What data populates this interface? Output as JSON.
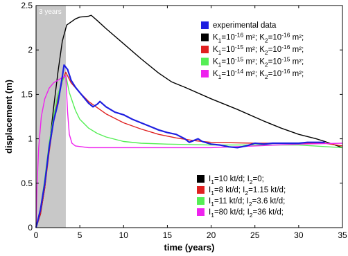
{
  "chart_data": {
    "type": "line",
    "xlabel": "time (years)",
    "ylabel": "displacement (m)",
    "xlim": [
      0,
      35
    ],
    "ylim": [
      0,
      2.5
    ],
    "xticks": [
      "0",
      "5",
      "10",
      "15",
      "20",
      "25",
      "30",
      "35"
    ],
    "yticks": [
      "0",
      "0.5",
      "1",
      "1.5",
      "2",
      "2.5"
    ],
    "grid": false,
    "shaded_region": {
      "from": 0,
      "to": 3.4,
      "label": "3 years",
      "color": "#c8c8c8"
    },
    "legend_top": {
      "placement": "top-right",
      "entries": [
        {
          "label": "experimental data",
          "color": "#1f1fe0"
        },
        {
          "label": "K1=10^-16 m²; K2=10^-16 m²;",
          "color": "#000000"
        },
        {
          "label": "K1=10^-15 m²; K2=10^-16 m²;",
          "color": "#e02020"
        },
        {
          "label": "K1=10^-15 m²; K2=10^-15 m²;",
          "color": "#55ee55"
        },
        {
          "label": "K1=10^-14 m²; K2=10^-16 m²;",
          "color": "#ee22ee"
        }
      ]
    },
    "legend_bottom": {
      "placement": "bottom-right",
      "entries": [
        {
          "label": "I1=10 kt/d; I2=0;",
          "color": "#000000"
        },
        {
          "label": "I1=8 kt/d;   I2=1.15 kt/d;",
          "color": "#e02020"
        },
        {
          "label": "I1=11 kt/d; I2=3.6 kt/d;",
          "color": "#55ee55"
        },
        {
          "label": "I1=80 kt/d; I2=36 kt/d;",
          "color": "#ee22ee"
        }
      ]
    },
    "series": [
      {
        "color": "#000000",
        "points": [
          [
            0,
            0
          ],
          [
            0.5,
            0.15
          ],
          [
            1,
            0.45
          ],
          [
            1.5,
            0.9
          ],
          [
            2,
            1.35
          ],
          [
            2.5,
            1.75
          ],
          [
            3,
            2.1
          ],
          [
            3.5,
            2.28
          ],
          [
            4.5,
            2.35
          ],
          [
            5,
            2.37
          ],
          [
            6,
            2.38
          ],
          [
            6.3,
            2.39
          ],
          [
            7,
            2.33
          ],
          [
            8,
            2.24
          ],
          [
            10,
            2.07
          ],
          [
            12,
            1.9
          ],
          [
            14,
            1.74
          ],
          [
            15.5,
            1.64
          ],
          [
            17,
            1.58
          ],
          [
            20,
            1.45
          ],
          [
            23,
            1.33
          ],
          [
            26,
            1.2
          ],
          [
            28,
            1.12
          ],
          [
            30,
            1.05
          ],
          [
            32,
            1.0
          ],
          [
            33,
            0.97
          ],
          [
            35,
            0.9
          ]
        ]
      },
      {
        "color": "#e02020",
        "points": [
          [
            0,
            0
          ],
          [
            0.5,
            0.15
          ],
          [
            1,
            0.45
          ],
          [
            1.5,
            0.85
          ],
          [
            2,
            1.2
          ],
          [
            2.5,
            1.45
          ],
          [
            3,
            1.65
          ],
          [
            3.4,
            1.75
          ],
          [
            4,
            1.63
          ],
          [
            5,
            1.52
          ],
          [
            6,
            1.42
          ],
          [
            7,
            1.35
          ],
          [
            8,
            1.28
          ],
          [
            10,
            1.18
          ],
          [
            12,
            1.11
          ],
          [
            14,
            1.05
          ],
          [
            16,
            1.01
          ],
          [
            18,
            0.98
          ],
          [
            20,
            0.96
          ],
          [
            25,
            0.95
          ],
          [
            30,
            0.95
          ],
          [
            33,
            0.95
          ],
          [
            35,
            0.92
          ]
        ]
      },
      {
        "color": "#55ee55",
        "points": [
          [
            0,
            0
          ],
          [
            0.5,
            0.2
          ],
          [
            1,
            0.55
          ],
          [
            1.5,
            0.95
          ],
          [
            2,
            1.25
          ],
          [
            2.5,
            1.5
          ],
          [
            3,
            1.65
          ],
          [
            3.4,
            1.72
          ],
          [
            3.8,
            1.52
          ],
          [
            4.5,
            1.32
          ],
          [
            5,
            1.22
          ],
          [
            6,
            1.12
          ],
          [
            7,
            1.06
          ],
          [
            8,
            1.02
          ],
          [
            10,
            0.97
          ],
          [
            12,
            0.95
          ],
          [
            15,
            0.94
          ],
          [
            20,
            0.93
          ],
          [
            25,
            0.93
          ],
          [
            30,
            0.93
          ],
          [
            35,
            0.9
          ]
        ]
      },
      {
        "color": "#ee22ee",
        "points": [
          [
            0,
            0
          ],
          [
            0.1,
            0.45
          ],
          [
            0.3,
            0.9
          ],
          [
            0.6,
            1.25
          ],
          [
            1,
            1.45
          ],
          [
            1.5,
            1.57
          ],
          [
            2,
            1.63
          ],
          [
            2.5,
            1.66
          ],
          [
            3,
            1.69
          ],
          [
            3.4,
            1.71
          ],
          [
            3.6,
            1.3
          ],
          [
            3.8,
            1.05
          ],
          [
            4.1,
            0.95
          ],
          [
            4.5,
            0.92
          ],
          [
            6,
            0.9
          ],
          [
            10,
            0.9
          ],
          [
            15,
            0.9
          ],
          [
            20,
            0.9
          ],
          [
            25,
            0.92
          ],
          [
            30,
            0.94
          ],
          [
            35,
            0.95
          ]
        ]
      },
      {
        "color": "#1f1fe0",
        "points": [
          [
            0,
            0
          ],
          [
            0.5,
            0.2
          ],
          [
            1,
            0.5
          ],
          [
            1.5,
            0.9
          ],
          [
            2,
            1.2
          ],
          [
            2.5,
            1.4
          ],
          [
            3,
            1.7
          ],
          [
            3.2,
            1.83
          ],
          [
            3.6,
            1.78
          ],
          [
            4,
            1.66
          ],
          [
            4.5,
            1.58
          ],
          [
            5,
            1.52
          ],
          [
            5.5,
            1.46
          ],
          [
            6,
            1.4
          ],
          [
            6.5,
            1.36
          ],
          [
            7,
            1.39
          ],
          [
            7.3,
            1.42
          ],
          [
            8,
            1.36
          ],
          [
            9,
            1.3
          ],
          [
            10,
            1.27
          ],
          [
            11,
            1.22
          ],
          [
            12,
            1.18
          ],
          [
            13,
            1.14
          ],
          [
            14,
            1.1
          ],
          [
            15,
            1.07
          ],
          [
            16,
            1.05
          ],
          [
            17,
            1.0
          ],
          [
            17.5,
            0.96
          ],
          [
            18,
            0.98
          ],
          [
            18.5,
            1.0
          ],
          [
            19,
            0.97
          ],
          [
            20,
            0.94
          ],
          [
            21,
            0.93
          ],
          [
            22,
            0.91
          ],
          [
            23,
            0.9
          ],
          [
            24,
            0.92
          ],
          [
            25,
            0.95
          ],
          [
            26,
            0.94
          ],
          [
            27,
            0.95
          ],
          [
            28,
            0.95
          ],
          [
            29,
            0.95
          ],
          [
            30,
            0.95
          ],
          [
            31,
            0.96
          ],
          [
            32,
            0.96
          ],
          [
            33,
            0.96
          ]
        ]
      }
    ]
  }
}
